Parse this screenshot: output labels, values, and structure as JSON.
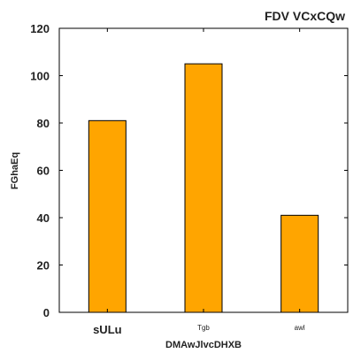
{
  "chart_data": {
    "type": "bar",
    "title": "FDV VCxCQw",
    "xlabel": "DMAwJlvcDHXB",
    "ylabel": "FGhaEq",
    "categories": [
      "sULu",
      "Tgb",
      "awl"
    ],
    "values": [
      81,
      105,
      41
    ],
    "ylim": [
      0,
      120
    ],
    "yticks": [
      0,
      20,
      40,
      60,
      80,
      100,
      120
    ],
    "grid": false,
    "legend": "none",
    "bar_color": "#FFA500",
    "bar_edge_color": "#000000"
  }
}
